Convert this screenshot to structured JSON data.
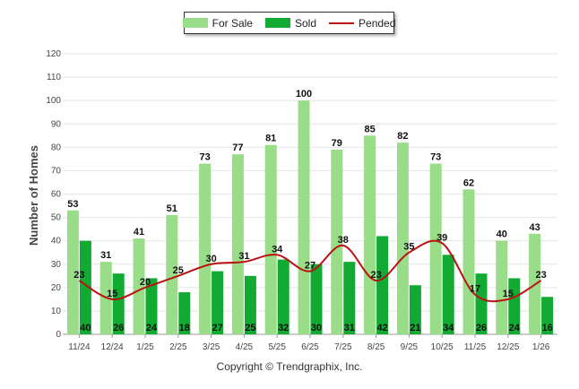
{
  "chart_data": {
    "type": "bar",
    "title": "",
    "xlabel": "",
    "ylabel": "Number of Homes",
    "ylim": [
      0,
      120
    ],
    "yticks": [
      0,
      10,
      20,
      30,
      40,
      50,
      60,
      70,
      80,
      90,
      100,
      110,
      120
    ],
    "categories": [
      "11/24",
      "12/24",
      "1/25",
      "2/25",
      "3/25",
      "4/25",
      "5/25",
      "6/25",
      "7/25",
      "8/25",
      "9/25",
      "10/25",
      "11/25",
      "12/25",
      "1/26"
    ],
    "series": [
      {
        "name": "For Sale",
        "kind": "bar",
        "color": "#99dd88",
        "values": [
          53,
          31,
          41,
          51,
          73,
          77,
          81,
          100,
          79,
          85,
          82,
          73,
          62,
          40,
          43
        ]
      },
      {
        "name": "Sold",
        "kind": "bar",
        "color": "#11aa33",
        "values": [
          40,
          26,
          24,
          18,
          27,
          25,
          32,
          30,
          31,
          42,
          21,
          34,
          26,
          24,
          16
        ]
      },
      {
        "name": "Pended",
        "kind": "line",
        "color": "#bb1111",
        "values": [
          23,
          15,
          20,
          25,
          30,
          31,
          34,
          27,
          38,
          23,
          35,
          39,
          17,
          15,
          23
        ]
      }
    ],
    "legend_position": "top-center",
    "grid": true
  },
  "footer": {
    "copyright": "Copyright © Trendgraphix, Inc."
  }
}
